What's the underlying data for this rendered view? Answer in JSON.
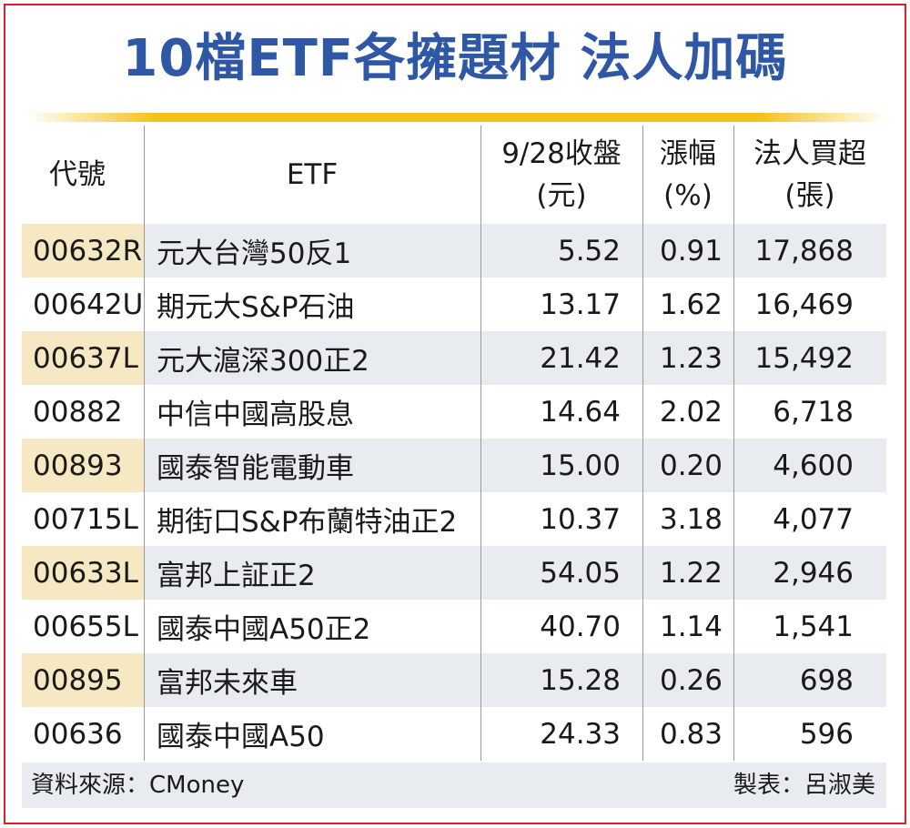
{
  "title": "10檔ETF各擁題材  法人加碼",
  "header": {
    "code": "代號",
    "name": "ETF",
    "close": [
      "9/28收盤",
      "(元)"
    ],
    "change": [
      "漲幅",
      "(%)"
    ],
    "net_buy": [
      "法人買超",
      "(張)"
    ]
  },
  "rows": [
    {
      "code": "00632R",
      "name": "元大台灣50反1",
      "close": "5.52",
      "change": "0.91",
      "net_buy": "17,868"
    },
    {
      "code": "00642U",
      "name": "期元大S&P石油",
      "close": "13.17",
      "change": "1.62",
      "net_buy": "16,469"
    },
    {
      "code": "00637L",
      "name": "元大滬深300正2",
      "close": "21.42",
      "change": "1.23",
      "net_buy": "15,492"
    },
    {
      "code": "00882",
      "name": "中信中國高股息",
      "close": "14.64",
      "change": "2.02",
      "net_buy": "6,718"
    },
    {
      "code": "00893",
      "name": "國泰智能電動車",
      "close": "15.00",
      "change": "0.20",
      "net_buy": "4,600"
    },
    {
      "code": "00715L",
      "name": "期街口S&P布蘭特油正2",
      "close": "10.37",
      "change": "3.18",
      "net_buy": "4,077"
    },
    {
      "code": "00633L",
      "name": "富邦上証正2",
      "close": "54.05",
      "change": "1.22",
      "net_buy": "2,946"
    },
    {
      "code": "00655L",
      "name": "國泰中國A50正2",
      "close": "40.70",
      "change": "1.14",
      "net_buy": "1,541"
    },
    {
      "code": "00895",
      "name": "富邦未來車",
      "close": "15.28",
      "change": "0.26",
      "net_buy": "698"
    },
    {
      "code": "00636",
      "name": "國泰中國A50",
      "close": "24.33",
      "change": "0.83",
      "net_buy": "596"
    }
  ],
  "footer": {
    "source": "資料來源：CMoney",
    "author": "製表：呂淑美"
  },
  "colors": {
    "title": "#2e57a6",
    "rule": "#f2c21a",
    "border": "#d8202a",
    "row_shade": "#e8ebef",
    "code_shade": "#f7e8c4"
  }
}
